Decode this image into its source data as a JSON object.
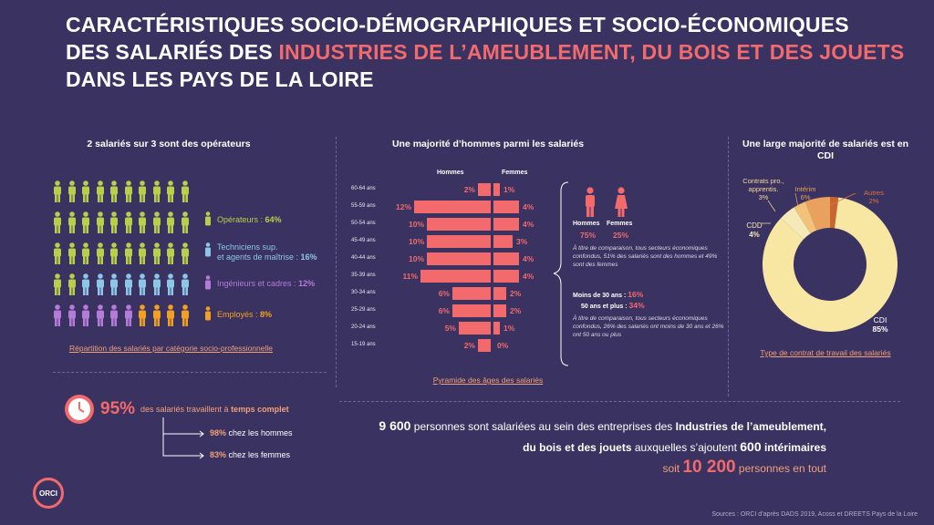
{
  "title": {
    "line1": "CARACTÉRISTIQUES SOCIO-DÉMOGRAPHIQUES ET SOCIO-ÉCONOMIQUES",
    "line2_prefix": "DES SALARIÉS DES ",
    "line2_highlight": "INDUSTRIES DE L’AMEUBLEMENT, DU BOIS ET DES JOUETS",
    "line3": "DANS LES PAYS DE LA LOIRE"
  },
  "colors": {
    "background": "#3a3260",
    "accent": "#f26a6c",
    "operateurs": "#b7cf4b",
    "techniciens": "#8ec6e8",
    "ingenieurs": "#b57bd8",
    "employes": "#f2a023",
    "cdi": "#f8e7a3"
  },
  "section1": {
    "title": "2 salariés sur 3 sont des opérateurs",
    "legend": [
      {
        "label": "Opérateurs : ",
        "value": "64%",
        "color": "#b7cf4b"
      },
      {
        "label": "Techniciens sup.",
        "label2": "et agents de maîtrise : ",
        "value": "16%",
        "color": "#8ec6e8"
      },
      {
        "label": "Ingénieurs et cadres : ",
        "value": "12%",
        "color": "#b57bd8"
      },
      {
        "label": "Employés : ",
        "value": "8%",
        "color": "#f2a023"
      }
    ],
    "link": "Répartition des salariés par catégorie socio-professionnelle"
  },
  "section2": {
    "title": "Une majorité d’hommes parmi les salariés",
    "col_men": "Hommes",
    "col_women": "Femmes",
    "ages": [
      "60-64 ans",
      "55-59 ans",
      "50-54 ans",
      "45-49 ans",
      "40-44 ans",
      "35-39 ans",
      "30-34 ans",
      "25-29 ans",
      "20-24 ans",
      "15-19 ans"
    ],
    "men": [
      "2%",
      "12%",
      "10%",
      "10%",
      "10%",
      "11%",
      "6%",
      "6%",
      "5%",
      "2%"
    ],
    "women": [
      "1%",
      "4%",
      "4%",
      "3%",
      "4%",
      "4%",
      "2%",
      "2%",
      "1%",
      "0%"
    ],
    "men_values": [
      2,
      12,
      10,
      10,
      10,
      11,
      6,
      6,
      5,
      2
    ],
    "women_values": [
      1,
      4,
      4,
      3,
      4,
      4,
      2,
      2,
      1,
      0
    ],
    "link": "Pyramide des âges des salariés",
    "side": {
      "men_label": "Hommes",
      "men_pct": "75%",
      "women_label": "Femmes",
      "women_pct": "25%",
      "note1": "À titre de comparaison, tous secteurs économiques confondus, 51% des salariés sont des hommes et 49% sont des femmes",
      "young_label": "Moins de 30 ans : ",
      "young_pct": "16%",
      "old_label": "50 ans et plus : ",
      "old_pct": "34%",
      "note2": "À titre de comparaison, tous secteurs économiques confondus, 26% des salariés ont moins de 30 ans et 26% ont 50 ans ou plus"
    }
  },
  "section3": {
    "title": "Une large majorité de salariés est en CDI",
    "contrats_label": "Contrats pro., apprentis.",
    "contrats_pct": "3%",
    "interim_label": "Intérim",
    "interim_pct": "6%",
    "autres_label": "Autres",
    "autres_pct": "2%",
    "cdd_label": "CDD",
    "cdd_pct": "4%",
    "cdi_label": "CDI",
    "cdi_pct": "85%",
    "link": "Type de contrat de travail des salariés"
  },
  "chart_data": {
    "type": "pie",
    "categories": [
      "CDI",
      "CDD",
      "Contrats pro., apprentis.",
      "Intérim",
      "Autres"
    ],
    "values": [
      85,
      4,
      3,
      6,
      2
    ],
    "title": "Une large majorité de salariés est en CDI"
  },
  "section4": {
    "pct": "95%",
    "text_prefix": "des salariés travaillent à ",
    "text_bold": "temps complet",
    "men_pct": "98%",
    "men_text": "chez les hommes",
    "women_pct": "83%",
    "women_text": "chez les femmes"
  },
  "bottom": {
    "n1": "9 600",
    "t1": " personnes sont salariées au sein des entreprises des ",
    "b1": "Industries de l’ameublement,",
    "b2": "du bois et des jouets",
    "t2": " auxquelles s’ajoutent ",
    "n2": "600",
    "b3": " intérimaires",
    "t3": "soit ",
    "n3": "10 200",
    "t4": " personnes en tout"
  },
  "logo": "ORCI",
  "source": "Sources : ORCI d’après DADS 2019, Acoss et DREETS Pays de la Loire"
}
